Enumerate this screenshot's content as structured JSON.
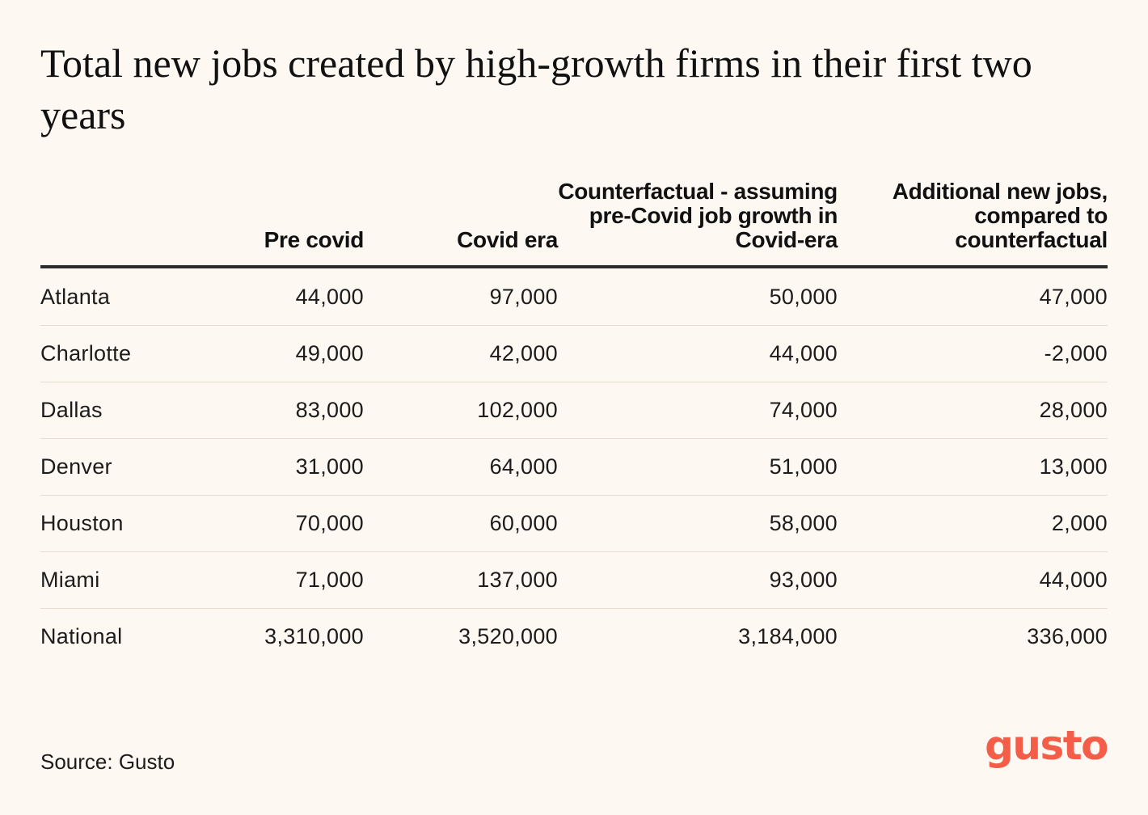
{
  "title": "Total new jobs created by high-growth firms in their first two years",
  "source": "Source: Gusto",
  "logo": "gusto",
  "colors": {
    "background": "#fdf8f1",
    "text": "#1c1c1c",
    "brand": "#f45d48",
    "rule": "#2b2b2b"
  },
  "chart_data": {
    "type": "table",
    "title": "Total new jobs created by high-growth firms in their first two years",
    "columns": [
      "",
      "Pre covid",
      "Covid era",
      "Counterfactual - assuming pre-Covid job growth in Covid-era",
      "Additional new jobs, compared to counterfactual"
    ],
    "rows": [
      {
        "city": "Atlanta",
        "values": [
          "44,000",
          "97,000",
          "50,000",
          "47,000"
        ]
      },
      {
        "city": "Charlotte",
        "values": [
          "49,000",
          "42,000",
          "44,000",
          "-2,000"
        ]
      },
      {
        "city": "Dallas",
        "values": [
          "83,000",
          "102,000",
          "74,000",
          "28,000"
        ]
      },
      {
        "city": "Denver",
        "values": [
          "31,000",
          "64,000",
          "51,000",
          "13,000"
        ]
      },
      {
        "city": "Houston",
        "values": [
          "70,000",
          "60,000",
          "58,000",
          "2,000"
        ]
      },
      {
        "city": "Miami",
        "values": [
          "71,000",
          "137,000",
          "93,000",
          "44,000"
        ]
      },
      {
        "city": "National",
        "values": [
          "3,310,000",
          "3,520,000",
          "3,184,000",
          "336,000"
        ]
      }
    ],
    "source": "Source: Gusto"
  }
}
